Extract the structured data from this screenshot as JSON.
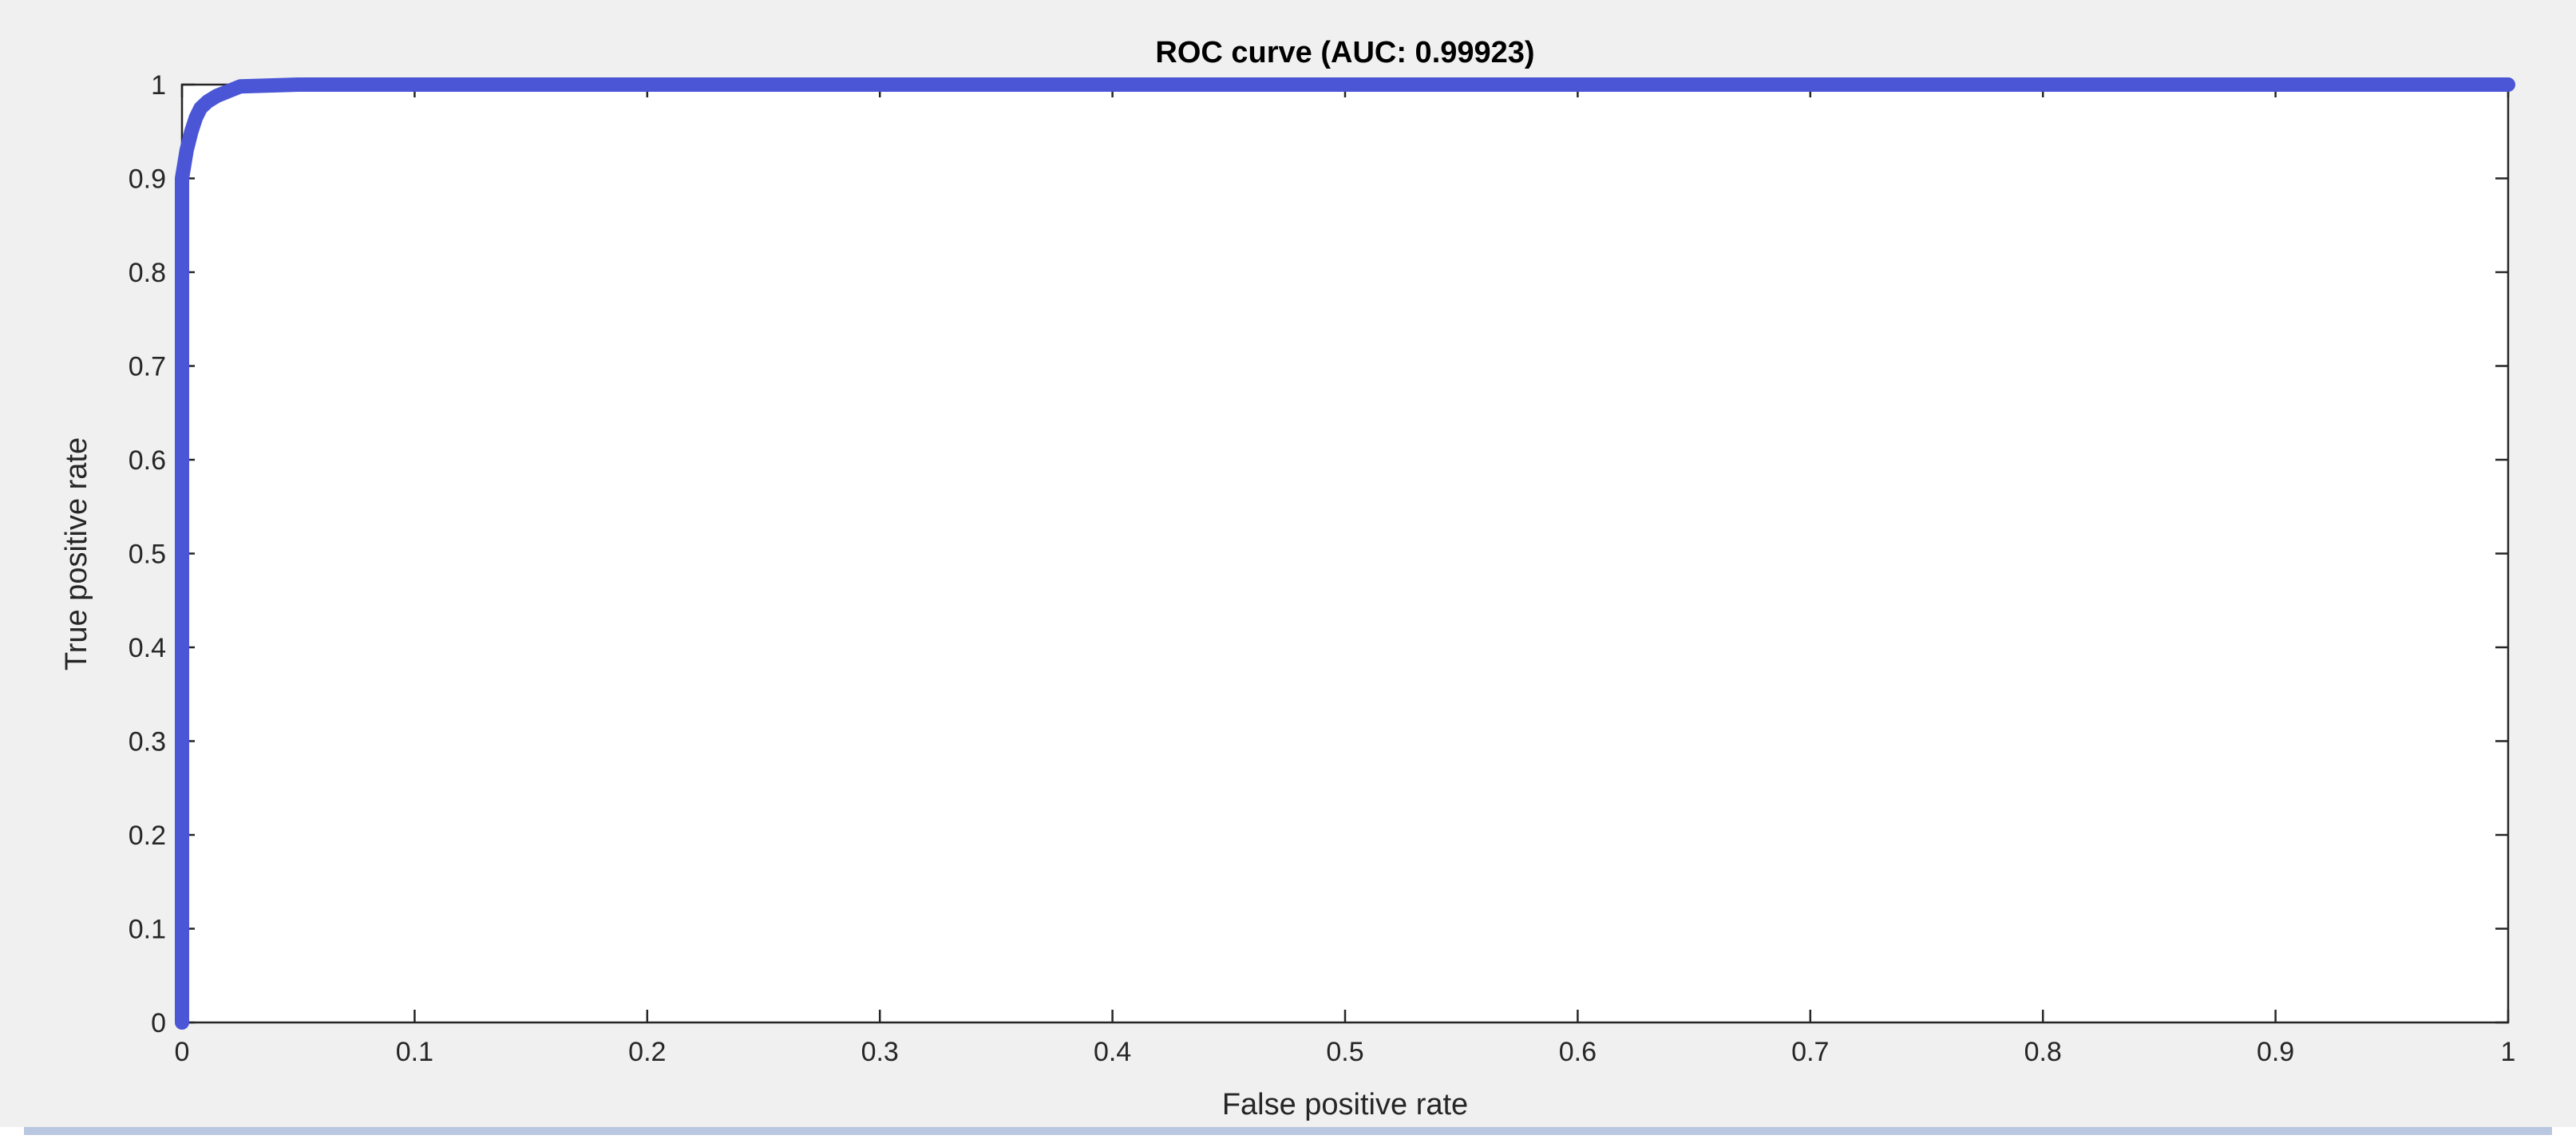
{
  "chart_data": {
    "type": "line",
    "title": "ROC curve (AUC: 0.99923)",
    "xlabel": "False positive rate",
    "ylabel": "True positive rate",
    "xlim": [
      0,
      1
    ],
    "ylim": [
      0,
      1
    ],
    "x_ticks": [
      "0",
      "0.1",
      "0.2",
      "0.3",
      "0.4",
      "0.5",
      "0.6",
      "0.7",
      "0.8",
      "0.9",
      "1"
    ],
    "y_ticks": [
      "0",
      "0.1",
      "0.2",
      "0.3",
      "0.4",
      "0.5",
      "0.6",
      "0.7",
      "0.8",
      "0.9",
      "1"
    ],
    "grid": false,
    "series": [
      {
        "color": "#4a56d6",
        "x": [
          0,
          0,
          0,
          0.001,
          0.002,
          0.004,
          0.006,
          0.008,
          0.011,
          0.015,
          0.02,
          0.025,
          0.05,
          0.2,
          0.5,
          0.8,
          1
        ],
        "y": [
          0,
          0.5,
          0.9,
          0.915,
          0.93,
          0.95,
          0.965,
          0.975,
          0.982,
          0.988,
          0.993,
          0.998,
          1,
          1,
          1,
          1,
          1
        ]
      }
    ]
  }
}
